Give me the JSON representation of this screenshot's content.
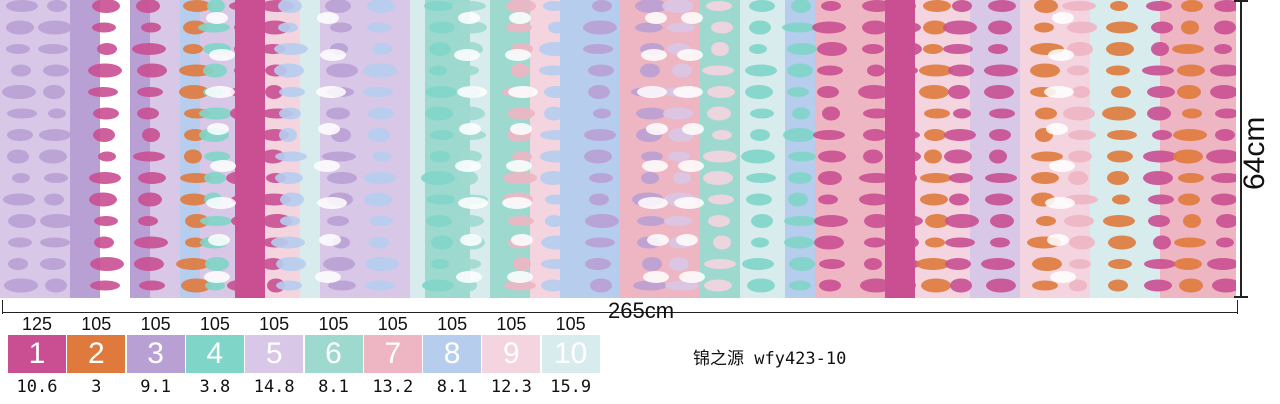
{
  "dimensions": {
    "width_label": "265cm",
    "height_label": "64cm"
  },
  "caption": "锦之源 wfy423-10",
  "palette": [
    {
      "index": "1",
      "top": "125",
      "bottom": "10.6",
      "color": "#c94f92"
    },
    {
      "index": "2",
      "top": "105",
      "bottom": "3",
      "color": "#df7a3c"
    },
    {
      "index": "3",
      "top": "105",
      "bottom": "9.1",
      "color": "#b9a0d4"
    },
    {
      "index": "4",
      "top": "105",
      "bottom": "3.8",
      "color": "#7fd5c8"
    },
    {
      "index": "5",
      "top": "105",
      "bottom": "14.8",
      "color": "#d8c7e6"
    },
    {
      "index": "6",
      "top": "105",
      "bottom": "8.1",
      "color": "#9ed9cf"
    },
    {
      "index": "7",
      "top": "105",
      "bottom": "13.2",
      "color": "#eeb5c3"
    },
    {
      "index": "8",
      "top": "105",
      "bottom": "8.1",
      "color": "#b6cdee"
    },
    {
      "index": "9",
      "top": "105",
      "bottom": "12.3",
      "color": "#f4d4df"
    },
    {
      "index": "10",
      "top": "105",
      "bottom": "15.9",
      "color": "#d8ecee"
    }
  ]
}
